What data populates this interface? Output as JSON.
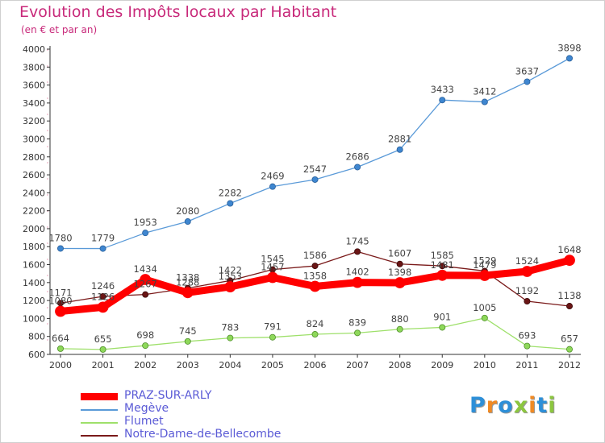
{
  "title": "Evolution des Impôts locaux par Habitant",
  "subtitle": "(en € et par an)",
  "logo": {
    "text": "Proxiti",
    "letters": [
      "P",
      "r",
      "o",
      "x",
      "i",
      "t",
      "i"
    ],
    "colors": [
      "#2d8fd8",
      "#f08a24",
      "#2d8fd8",
      "#8cc63f",
      "#f08a24",
      "#2d8fd8",
      "#8cc63f"
    ]
  },
  "chart_data": {
    "type": "line",
    "title": "Evolution des Impôts locaux par Habitant",
    "subtitle": "(en € et par an)",
    "x": [
      "2000",
      "2001",
      "2002",
      "2003",
      "2004",
      "2005",
      "2006",
      "2007",
      "2008",
      "2009",
      "2010",
      "2011",
      "2012"
    ],
    "ylim": [
      600,
      4000
    ],
    "yticks": [
      600,
      800,
      1000,
      1200,
      1400,
      1600,
      1800,
      2000,
      2200,
      2400,
      2600,
      2800,
      3000,
      3200,
      3400,
      3600,
      3800,
      4000
    ],
    "grid": false,
    "legend_position": "bottom-left",
    "series": [
      {
        "name": "PRAZ-SUR-ARLY",
        "color": "#ff0000",
        "values": [
          1080,
          1126,
          1434,
          1288,
          1353,
          1457,
          1358,
          1402,
          1398,
          1481,
          1479,
          1524,
          1648
        ],
        "labels": [
          "1080",
          "1126",
          "1434",
          "1288",
          "1353",
          "1457",
          "1358",
          "1402",
          "1398",
          "1481",
          "1479",
          "1524",
          "1648"
        ]
      },
      {
        "name": "Megève",
        "color": "#5a9ad8",
        "values": [
          1780,
          1779,
          1953,
          2080,
          2282,
          2469,
          2547,
          2686,
          2881,
          3433,
          3412,
          3637,
          3898
        ],
        "labels": [
          "1780",
          "1779",
          "1953",
          "2080",
          "2282",
          "2469",
          "2547",
          "2686",
          "2881",
          "3433",
          "3412",
          "3637",
          "3898"
        ]
      },
      {
        "name": "Flumet",
        "color": "#9ee06a",
        "values": [
          664,
          655,
          698,
          745,
          783,
          791,
          824,
          839,
          880,
          901,
          1005,
          693,
          657
        ],
        "labels": [
          "664",
          "655",
          "698",
          "745",
          "783",
          "791",
          "824",
          "839",
          "880",
          "901",
          "1005",
          "693",
          "657"
        ]
      },
      {
        "name": "Notre-Dame-de-Bellecombe",
        "color": "#7a1a1a",
        "values": [
          1171,
          1246,
          1267,
          1338,
          1422,
          1545,
          1586,
          1745,
          1607,
          1585,
          1529,
          1192,
          1138
        ],
        "labels": [
          "1171",
          "1246",
          "1267",
          "1338",
          "1422",
          "1545",
          "1586",
          "1745",
          "1607",
          "1585",
          "1529",
          "1192",
          "1138"
        ]
      }
    ]
  }
}
